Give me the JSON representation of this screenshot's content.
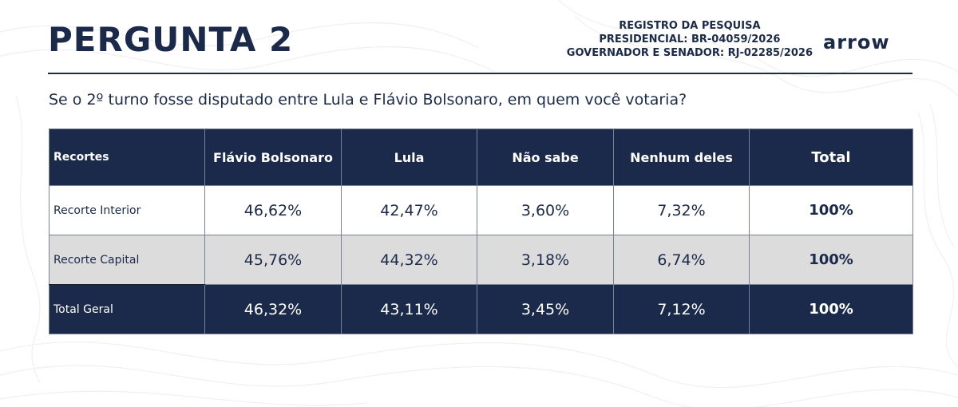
{
  "header": {
    "title": "PERGUNTA 2",
    "registry_lines": [
      "REGISTRO DA PESQUISA",
      "PRESIDENCIAL: BR-04059/2026",
      "GOVERNADOR E SENADOR: RJ-02285/2026"
    ],
    "logo_text": "arrow"
  },
  "question": "Se o 2º turno fosse disputado entre Lula e Flávio Bolsonaro, em quem você votaria?",
  "table": {
    "columns": [
      "Recortes",
      "Flávio Bolsonaro",
      "Lula",
      "Não sabe",
      "Nenhum deles",
      "Total"
    ],
    "rows": [
      {
        "label": "Recorte Interior",
        "values": [
          "46,62%",
          "42,47%",
          "3,60%",
          "7,32%"
        ],
        "total": "100%"
      },
      {
        "label": "Recorte Capital",
        "values": [
          "45,76%",
          "44,32%",
          "3,18%",
          "6,74%"
        ],
        "total": "100%"
      },
      {
        "label": "Total Geral",
        "values": [
          "46,32%",
          "43,11%",
          "3,45%",
          "7,12%"
        ],
        "total": "100%"
      }
    ]
  },
  "colors": {
    "navy": "#1b2a4a",
    "row_gray": "#dcdcdc",
    "white": "#ffffff"
  }
}
